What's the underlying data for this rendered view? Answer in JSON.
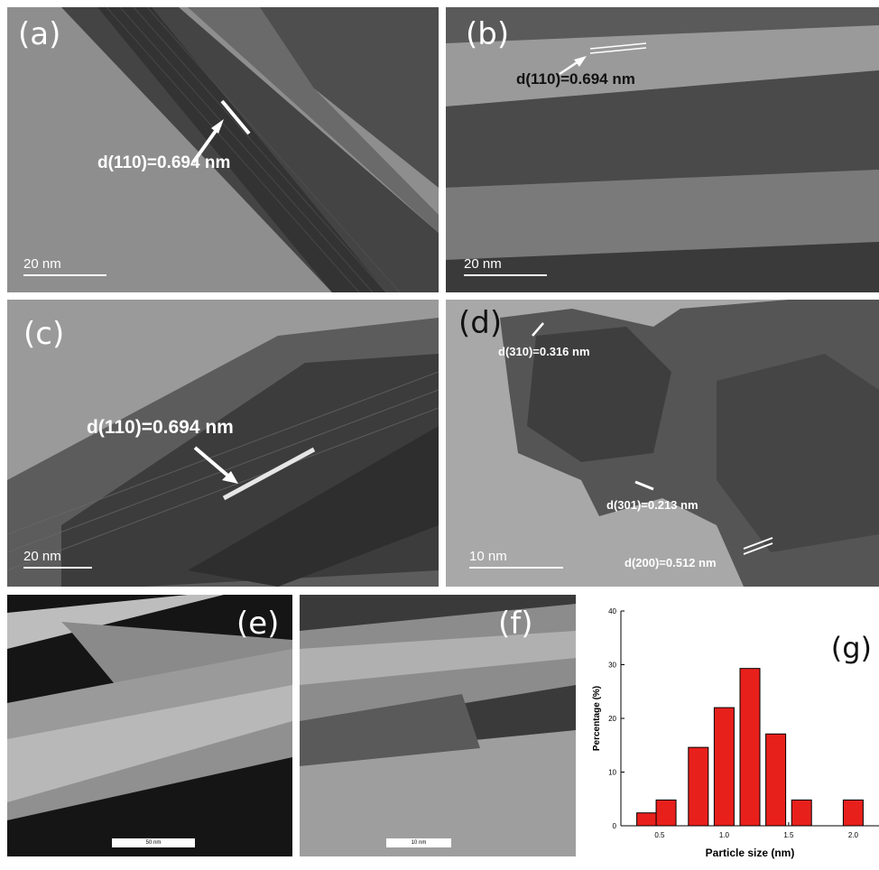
{
  "panels": {
    "a": {
      "label": "(a)",
      "annotation": "d(110)=0.694 nm",
      "scale_bar": "20 nm"
    },
    "b": {
      "label": "(b)",
      "annotation": "d(110)=0.694 nm",
      "scale_bar": "20 nm"
    },
    "c": {
      "label": "(c)",
      "annotation": "d(110)=0.694 nm",
      "scale_bar": "20 nm"
    },
    "d": {
      "label": "(d)",
      "annotations": [
        "d(310)=0.316 nm",
        "d(301)=0.213 nm",
        "d(200)=0.512 nm"
      ],
      "scale_bar": "10 nm"
    },
    "e": {
      "label": "(e)",
      "scale_bar": "50 nm"
    },
    "f": {
      "label": "(f)",
      "scale_bar": "10 nm"
    },
    "g": {
      "label": "(g)"
    }
  },
  "colors": {
    "bar_fill": "#e8201c",
    "bar_stroke": "#000000"
  },
  "chart_data": {
    "type": "bar",
    "xlabel": "Particle size (nm)",
    "ylabel": "Percentage (%)",
    "x": [
      0.4,
      0.55,
      0.8,
      1.0,
      1.2,
      1.4,
      1.6,
      2.0
    ],
    "values": [
      2.4,
      4.8,
      14.6,
      22.0,
      29.3,
      17.1,
      4.8,
      4.8
    ],
    "xticks": [
      "0.5",
      "1.0",
      "1.5",
      "2.0"
    ],
    "yticks": [
      "0",
      "10",
      "20",
      "30",
      "40"
    ],
    "xlim": [
      0.2,
      2.2
    ],
    "ylim": [
      0,
      40
    ]
  }
}
